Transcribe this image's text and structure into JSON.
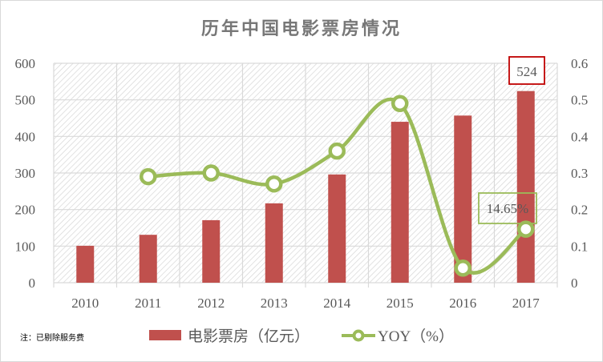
{
  "title": "历年中国电影票房情况",
  "note": "注：已剔除服务费",
  "legend": {
    "bar_label": "电影票房（亿元）",
    "line_label": "YOY（%）"
  },
  "annotations": {
    "max_bar_label": "524",
    "last_yoy_label": "14.65%"
  },
  "colors": {
    "bar": "#c0504d",
    "line": "#9bbb59",
    "grid": "#d9d9d9",
    "max_label_border": "#c00000",
    "yoy_label_border": "#9bbb59"
  },
  "chart_data": {
    "type": "bar+line",
    "title": "历年中国电影票房情况",
    "categories": [
      "2010",
      "2011",
      "2012",
      "2013",
      "2014",
      "2015",
      "2016",
      "2017"
    ],
    "series": [
      {
        "name": "电影票房（亿元）",
        "type": "bar",
        "axis": "left",
        "values": [
          101,
          131,
          171,
          217,
          296,
          440,
          457,
          524
        ]
      },
      {
        "name": "YOY（%）",
        "type": "line",
        "axis": "right",
        "smooth": true,
        "values": [
          null,
          0.29,
          0.3,
          0.27,
          0.36,
          0.49,
          0.04,
          0.1465
        ]
      }
    ],
    "y_left": {
      "ylim": [
        0,
        600
      ],
      "ticks": [
        "0",
        "100",
        "200",
        "300",
        "400",
        "500",
        "600"
      ]
    },
    "y_right": {
      "ylim": [
        0,
        0.6
      ],
      "ticks": [
        "0",
        "0.1",
        "0.2",
        "0.3",
        "0.4",
        "0.5",
        "0.6"
      ]
    },
    "grid": true,
    "legend_position": "bottom",
    "data_labels": [
      {
        "category": "2017",
        "series": "电影票房（亿元）",
        "text": "524"
      },
      {
        "category": "2017",
        "series": "YOY（%）",
        "text": "14.65%"
      }
    ]
  }
}
